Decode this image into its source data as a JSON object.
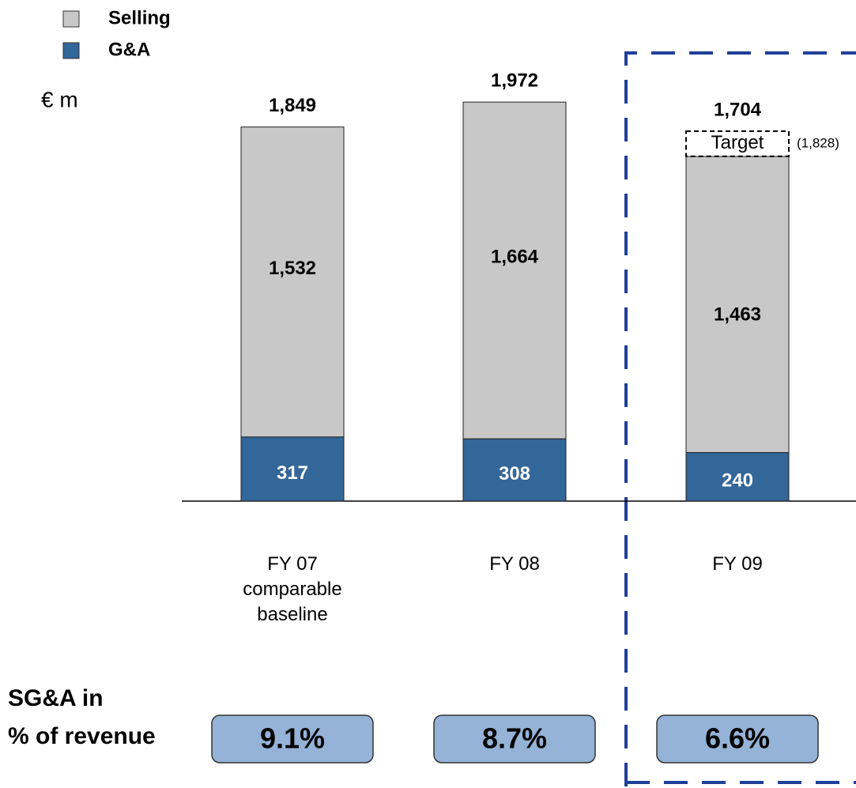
{
  "chart_data": {
    "type": "stacked_bar",
    "unit": "€ m",
    "categories": [
      "FY 07\ncomparable\nbaseline",
      "FY 08",
      "FY 09"
    ],
    "series": [
      {
        "name": "G&A",
        "color": "#336699",
        "values": [
          317,
          308,
          240
        ]
      },
      {
        "name": "Selling",
        "color": "#c8c8c8",
        "values": [
          1532,
          1664,
          1463
        ]
      }
    ],
    "totals": [
      1849,
      1972,
      1704
    ],
    "total_labels": [
      "1,849",
      "1,972",
      "1,704"
    ],
    "value_labels": [
      [
        "317",
        "308",
        "240"
      ],
      [
        "1,532",
        "1,664",
        "1,463"
      ]
    ],
    "target": {
      "label": "Target",
      "value": 1828,
      "value_label": "(1,828)"
    },
    "ylim": [
      0,
      2000
    ],
    "revenue_share": {
      "label": "SG&A in\n% of revenue",
      "values": [
        9.1,
        8.7,
        6.6
      ],
      "value_labels": [
        "9.1%",
        "8.7%",
        "6.6%"
      ]
    }
  }
}
